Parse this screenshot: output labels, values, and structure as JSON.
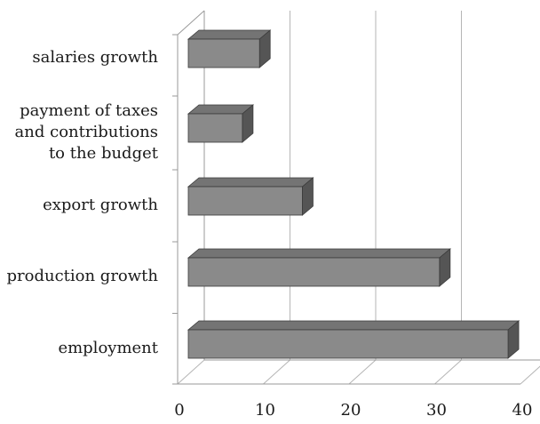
{
  "chart_data": {
    "type": "bar",
    "orientation": "horizontal",
    "style": "3d",
    "categories": [
      "salaries growth",
      "payment of taxes and contributions to the budget",
      "export growth",
      "production growth",
      "employment"
    ],
    "category_label_lines": [
      [
        "salaries growth"
      ],
      [
        "payment of taxes",
        "and contributions",
        "to the budget"
      ],
      [
        "export growth"
      ],
      [
        "production growth"
      ],
      [
        "employment"
      ]
    ],
    "values": [
      8,
      6,
      13,
      29,
      37
    ],
    "xlim": [
      0,
      40
    ],
    "xticks": [
      "0",
      "10",
      "20",
      "30",
      "40"
    ],
    "grid": "vertical",
    "legend": "none",
    "title": "",
    "xlabel": "",
    "ylabel": "",
    "colors": {
      "bar_front": "#8a8a8a",
      "bar_top": "#747474",
      "bar_side": "#555555",
      "grid": "#b5b5b5",
      "axis": "#9a9a9a"
    }
  }
}
